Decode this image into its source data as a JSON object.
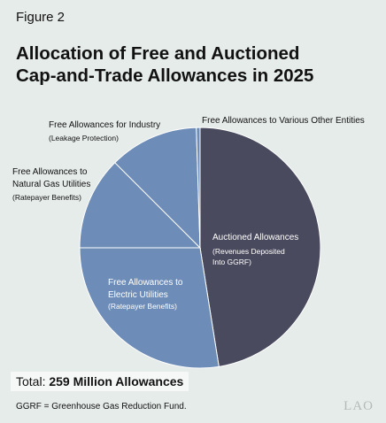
{
  "figure_label": "Figure 2",
  "title_line1": "Allocation of Free and Auctioned",
  "title_line2": "Cap-and-Trade Allowances in 2025",
  "total_prefix": "Total: ",
  "total_value": "259 Million Allowances",
  "footnote": "GGRF = Greenhouse Gas Reduction Fund.",
  "logo": "LAO",
  "chart_data": {
    "type": "pie",
    "title": "Allocation of Free and Auctioned Cap-and-Trade Allowances in 2025",
    "unit": "share of allowances",
    "slices": [
      {
        "label": "Auctioned Allowances",
        "sublabel": "(Revenues Deposited Into GGRF)",
        "value": 0.475,
        "color": "#4a4a5e"
      },
      {
        "label": "Free Allowances to Electric Utilities",
        "sublabel": "(Ratepayer Benefits)",
        "value": 0.275,
        "color": "#6d8cb7"
      },
      {
        "label": "Free Allowances to Natural Gas Utilities",
        "sublabel": "(Ratepayer Benefits)",
        "value": 0.125,
        "color": "#6d8cb7"
      },
      {
        "label": "Free Allowances for Industry",
        "sublabel": "(Leakage Protection)",
        "value": 0.12,
        "color": "#6d8cb7"
      },
      {
        "label": "Free Allowances to Various Other Entities",
        "sublabel": "",
        "value": 0.005,
        "color": "#6d8cb7"
      }
    ]
  }
}
